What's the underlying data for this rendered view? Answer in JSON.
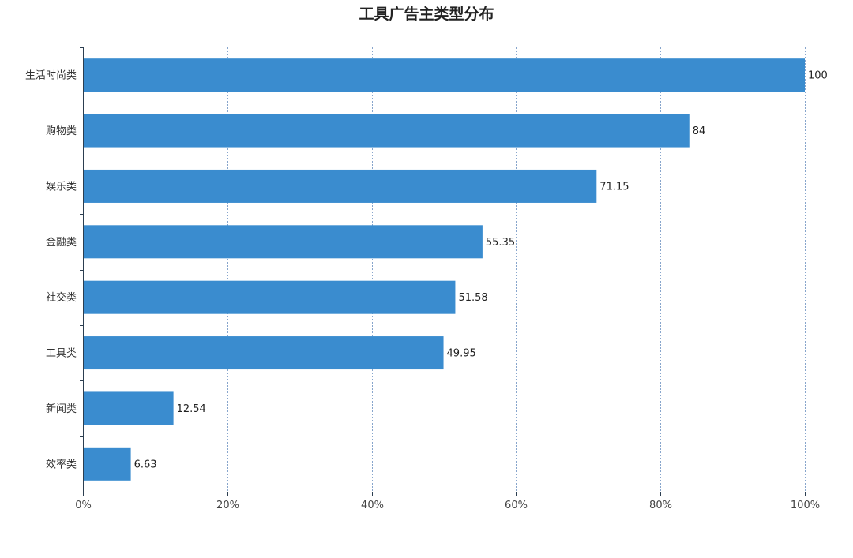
{
  "chart_data": {
    "type": "bar",
    "orientation": "horizontal",
    "title": "工具广告主类型分布",
    "categories": [
      "生活时尚类",
      "购物类",
      "娱乐类",
      "金融类",
      "社交类",
      "工具类",
      "新闻类",
      "效率类"
    ],
    "values": [
      100,
      84,
      71.15,
      55.35,
      51.58,
      49.95,
      12.54,
      6.63
    ],
    "value_labels": [
      "100",
      "84",
      "71.15",
      "55.35",
      "51.58",
      "49.95",
      "12.54",
      "6.63"
    ],
    "xlim": [
      0,
      100
    ],
    "x_ticks": [
      0,
      20,
      40,
      60,
      80,
      100
    ],
    "x_tick_labels": [
      "0%",
      "20%",
      "40%",
      "60%",
      "80%",
      "100%"
    ],
    "xlabel": "",
    "ylabel": "",
    "grid": "vertical-dashed",
    "legend": "none",
    "bar_color": "#3a8ccf"
  }
}
